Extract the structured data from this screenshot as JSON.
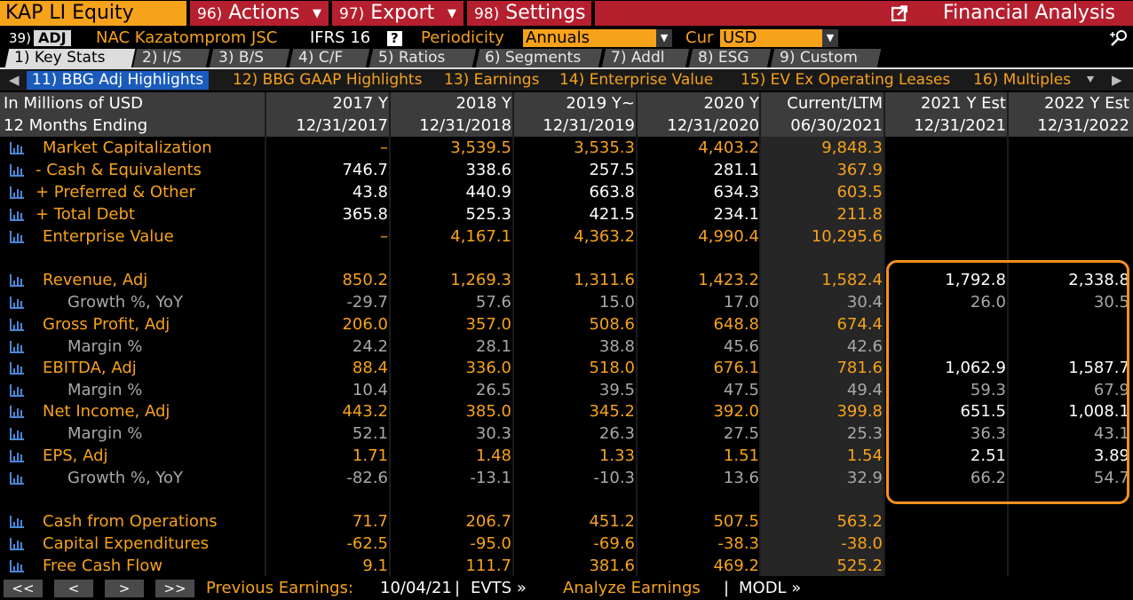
{
  "toolbar": {
    "ticker": "KAP LI Equity",
    "actions_num": "96)",
    "actions_label": "Actions",
    "export_num": "97)",
    "export_label": "Export",
    "settings_num": "98)",
    "settings_label": "Settings",
    "title": "Financial Analysis"
  },
  "company_bar": {
    "num": "39)",
    "adj": "ADJ",
    "name": "NAC Kazatomprom JSC",
    "std": "IFRS 16",
    "help": "?",
    "periodicity_label": "Periodicity",
    "periodicity_value": "Annuals",
    "cur_label": "Cur",
    "cur_value": "USD"
  },
  "tabs": [
    {
      "label": "1) Key Stats"
    },
    {
      "label": "2) I/S"
    },
    {
      "label": "3) B/S"
    },
    {
      "label": "4) C/F"
    },
    {
      "label": "5) Ratios"
    },
    {
      "label": "6) Segments"
    },
    {
      "label": "7) Addl"
    },
    {
      "label": "8) ESG"
    },
    {
      "label": "9) Custom"
    }
  ],
  "subtabs": [
    {
      "label": "11) BBG Adj Highlights"
    },
    {
      "label": "12) BBG GAAP Highlights"
    },
    {
      "label": "13) Earnings"
    },
    {
      "label": "14) Enterprise Value"
    },
    {
      "label": "15) EV Ex Operating Leases"
    },
    {
      "label": "16) Multiples"
    }
  ],
  "header": {
    "row1_label": "In Millions of USD",
    "row2_label": "12 Months Ending",
    "columns": [
      {
        "period": "2017 Y",
        "date": "12/31/2017"
      },
      {
        "period": "2018 Y",
        "date": "12/31/2018"
      },
      {
        "period": "2019 Y~",
        "date": "12/31/2019"
      },
      {
        "period": "2020 Y",
        "date": "12/31/2020"
      },
      {
        "period": "Current/LTM",
        "date": "06/30/2021"
      },
      {
        "period": "2021 Y Est",
        "date": "12/31/2021"
      },
      {
        "period": "2022 Y Est",
        "date": "12/31/2022"
      }
    ]
  },
  "rows": [
    {
      "label": "Market Capitalization",
      "values": [
        "–",
        "3,539.5",
        "3,535.3",
        "4,403.2",
        "9,848.3",
        "",
        ""
      ]
    },
    {
      "label": "- Cash & Equivalents",
      "values": [
        "746.7",
        "338.6",
        "257.5",
        "281.1",
        "367.9",
        "",
        ""
      ]
    },
    {
      "label": "+ Preferred & Other",
      "values": [
        "43.8",
        "440.9",
        "663.8",
        "634.3",
        "603.5",
        "",
        ""
      ]
    },
    {
      "label": "+ Total Debt",
      "values": [
        "365.8",
        "525.3",
        "421.5",
        "234.1",
        "211.8",
        "",
        ""
      ]
    },
    {
      "label": "Enterprise Value",
      "values": [
        "–",
        "4,167.1",
        "4,363.2",
        "4,990.4",
        "10,295.6",
        "",
        ""
      ]
    },
    {
      "label": "Revenue, Adj",
      "values": [
        "850.2",
        "1,269.3",
        "1,311.6",
        "1,423.2",
        "1,582.4",
        "1,792.8",
        "2,338.8"
      ]
    },
    {
      "label": "Growth %, YoY",
      "values": [
        "-29.7",
        "57.6",
        "15.0",
        "17.0",
        "30.4",
        "26.0",
        "30.5"
      ]
    },
    {
      "label": "Gross Profit, Adj",
      "values": [
        "206.0",
        "357.0",
        "508.6",
        "648.8",
        "674.4",
        "",
        ""
      ]
    },
    {
      "label": "Margin %",
      "values": [
        "24.2",
        "28.1",
        "38.8",
        "45.6",
        "42.6",
        "",
        ""
      ]
    },
    {
      "label": "EBITDA, Adj",
      "values": [
        "88.4",
        "336.0",
        "518.0",
        "676.1",
        "781.6",
        "1,062.9",
        "1,587.7"
      ]
    },
    {
      "label": "Margin %",
      "values": [
        "10.4",
        "26.5",
        "39.5",
        "47.5",
        "49.4",
        "59.3",
        "67.9"
      ]
    },
    {
      "label": "Net Income, Adj",
      "values": [
        "443.2",
        "385.0",
        "345.2",
        "392.0",
        "399.8",
        "651.5",
        "1,008.1"
      ]
    },
    {
      "label": "Margin %",
      "values": [
        "52.1",
        "30.3",
        "26.3",
        "27.5",
        "25.3",
        "36.3",
        "43.1"
      ]
    },
    {
      "label": "EPS, Adj",
      "values": [
        "1.71",
        "1.48",
        "1.33",
        "1.51",
        "1.54",
        "2.51",
        "3.89"
      ]
    },
    {
      "label": "Growth %, YoY",
      "values": [
        "-82.6",
        "-13.1",
        "-10.3",
        "13.6",
        "32.9",
        "66.2",
        "54.7"
      ]
    },
    {
      "label": "Cash from Operations",
      "values": [
        "71.7",
        "206.7",
        "451.2",
        "507.5",
        "563.2",
        "",
        ""
      ]
    },
    {
      "label": "Capital Expenditures",
      "values": [
        "-62.5",
        "-95.0",
        "-69.6",
        "-38.3",
        "-38.0",
        "",
        ""
      ]
    },
    {
      "label": "Free Cash Flow",
      "values": [
        "9.1",
        "111.7",
        "381.6",
        "469.2",
        "525.2",
        "",
        ""
      ]
    }
  ],
  "footer": {
    "nav": [
      "<<",
      "<",
      ">",
      ">>"
    ],
    "prev_earnings_label": "Previous Earnings:",
    "prev_earnings_date": "10/04/21",
    "sep": "|",
    "evts": "EVTS »",
    "analyze": "Analyze Earnings",
    "modl": "MODL »"
  },
  "colors": {
    "accent": "#f7a21b",
    "menu_red": "#b51f2e",
    "active_subtab": "#1a5bbd",
    "highlight_border": "#f7901e"
  }
}
